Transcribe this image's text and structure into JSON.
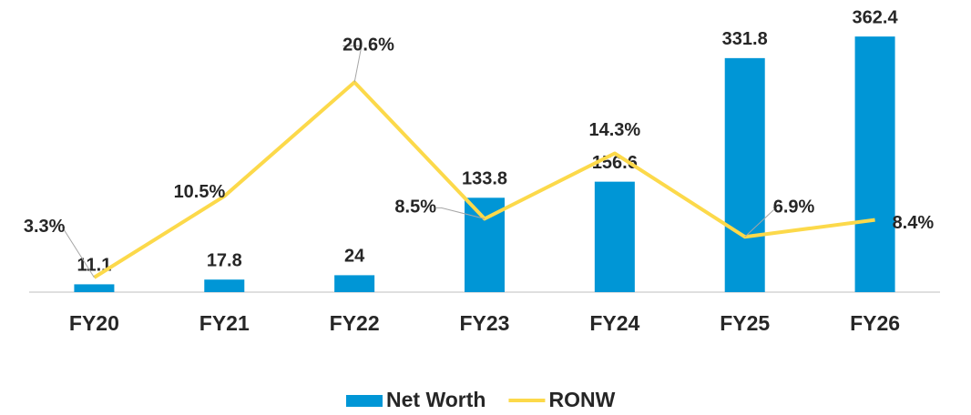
{
  "chart_data": {
    "type": "bar-line",
    "categories": [
      "FY20",
      "FY21",
      "FY22",
      "FY23",
      "FY24",
      "FY25",
      "FY26"
    ],
    "series": [
      {
        "name": "Net Worth",
        "type": "bar",
        "color": "#0096d6",
        "values": [
          11.1,
          17.8,
          24,
          133.8,
          156.6,
          331.8,
          362.4
        ]
      },
      {
        "name": "RONW",
        "type": "line",
        "axis": "y2",
        "color": "#fcd94a",
        "values": [
          3.3,
          10.5,
          20.6,
          8.5,
          14.3,
          6.9,
          8.4
        ],
        "value_labels": [
          "3.3%",
          "10.5%",
          "20.6%",
          "8.5%",
          "14.3%",
          "6.9%",
          "8.4%"
        ]
      }
    ],
    "ylim": [
      0,
      400
    ],
    "y2lim": [
      2,
      27
    ],
    "legend": "bottom"
  }
}
